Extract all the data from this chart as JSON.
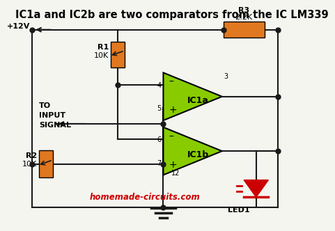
{
  "title": "IC1a and IC2b are two comparators from the IC LM339",
  "title_fontsize": 10.5,
  "bg_color": "#f5f5f0",
  "wire_color": "#1a1a1a",
  "resistor_color": "#e07820",
  "comparator_color": "#88cc00",
  "led_color": "#cc0000",
  "text_color": "#000000",
  "watermark": "homemade-circuits.com",
  "watermark_color": "#cc0000"
}
